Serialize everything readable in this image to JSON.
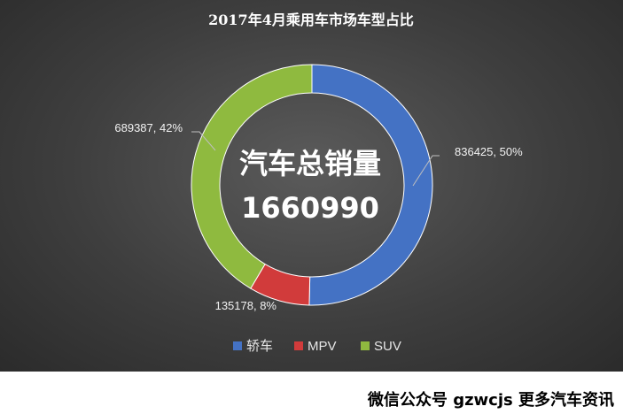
{
  "chart_data": {
    "type": "donut",
    "title": "2017年4月乘用车市场车型占比",
    "center_text": [
      "汽车总销量",
      "1660990"
    ],
    "series": [
      {
        "name": "轿车",
        "value": 836425,
        "percent": 50,
        "label": "836425, 50%",
        "color": "#4472c4"
      },
      {
        "name": "MPV",
        "value": 135178,
        "percent": 8,
        "label": "135178, 8%",
        "color": "#d13b3b"
      },
      {
        "name": "SUV",
        "value": 689387,
        "percent": 42,
        "label": "689387, 42%",
        "color": "#8fba3f"
      }
    ],
    "legend_position": "bottom"
  },
  "footer": {
    "text": "微信公众号 gzwcjs 更多汽车资讯"
  }
}
